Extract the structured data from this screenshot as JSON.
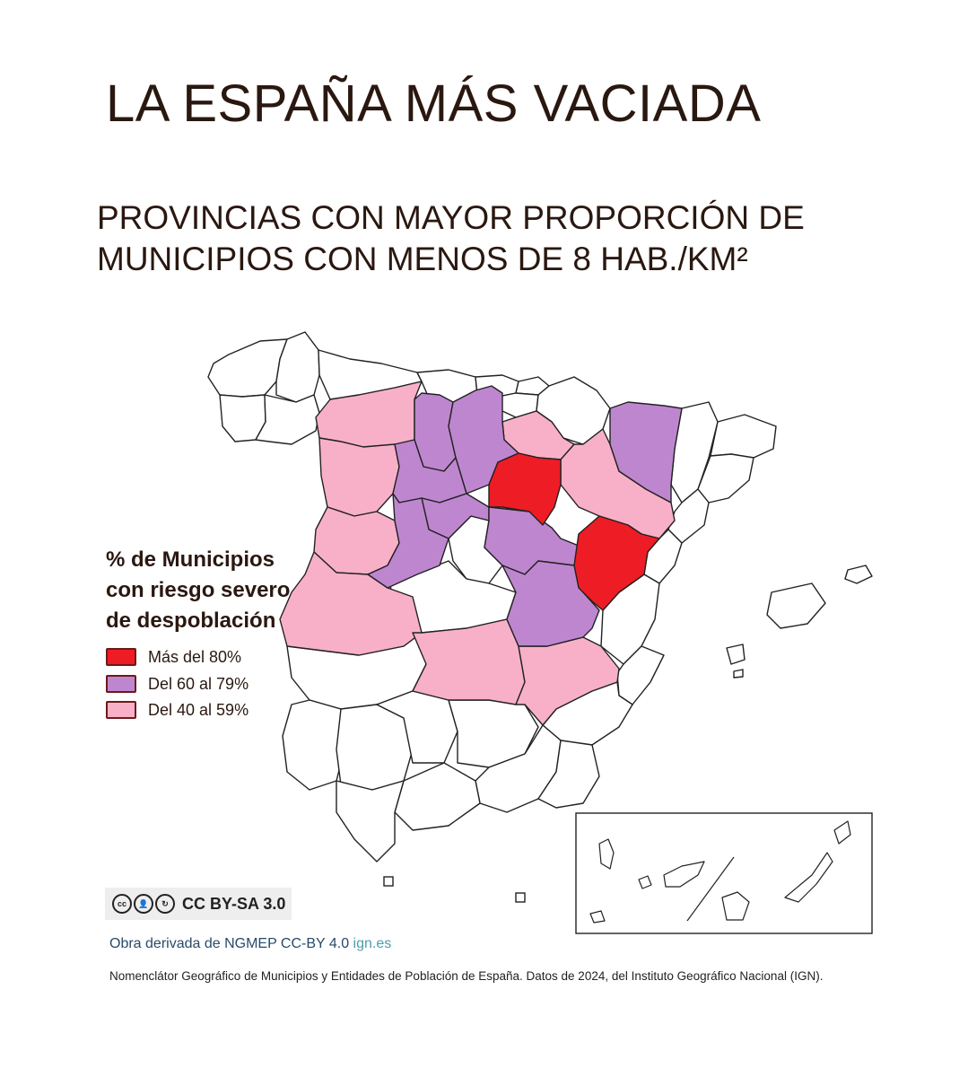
{
  "title": "LA ESPAÑA MÁS VACIADA",
  "subtitle": {
    "line1": "PROVINCIAS CON MAYOR PROPORCIÓN DE",
    "line2": "MUNICIPIOS CON MENOS DE 8 HAB./KM²"
  },
  "legend": {
    "title_lines": [
      "% de Municipios",
      "con riesgo severo",
      "de despoblación"
    ],
    "items": [
      {
        "label": "Más del 80%",
        "color": "#ee1c25"
      },
      {
        "label": "Del 60 al 79%",
        "color": "#bf86d0"
      },
      {
        "label": "Del 40 al 59%",
        "color": "#f8b0c8"
      }
    ]
  },
  "map": {
    "highlighted_regions": {
      "mas_del_80": [
        "Soria",
        "Teruel"
      ],
      "del_60_al_79": [
        "Palencia",
        "Burgos",
        "Valladolid",
        "Ávila",
        "Segovia",
        "Guadalajara",
        "Cuenca",
        "Huesca"
      ],
      "del_40_al_59": [
        "León",
        "Zamora",
        "Salamanca",
        "Cáceres",
        "La Rioja",
        "Zaragoza",
        "Ciudad Real",
        "Albacete"
      ]
    }
  },
  "license": {
    "icons": [
      "cc-icon",
      "by-icon",
      "sa-icon"
    ],
    "text": "CC BY-SA 3.0"
  },
  "source": {
    "text": "Obra derivada de NGMEP CC-BY 4.0",
    "link": "ign.es"
  },
  "footnote": "Nomenclátor Geográfico de Municipios y Entidades de Población de España. Datos de 2024, del Instituto Geográfico Nacional (IGN)."
}
